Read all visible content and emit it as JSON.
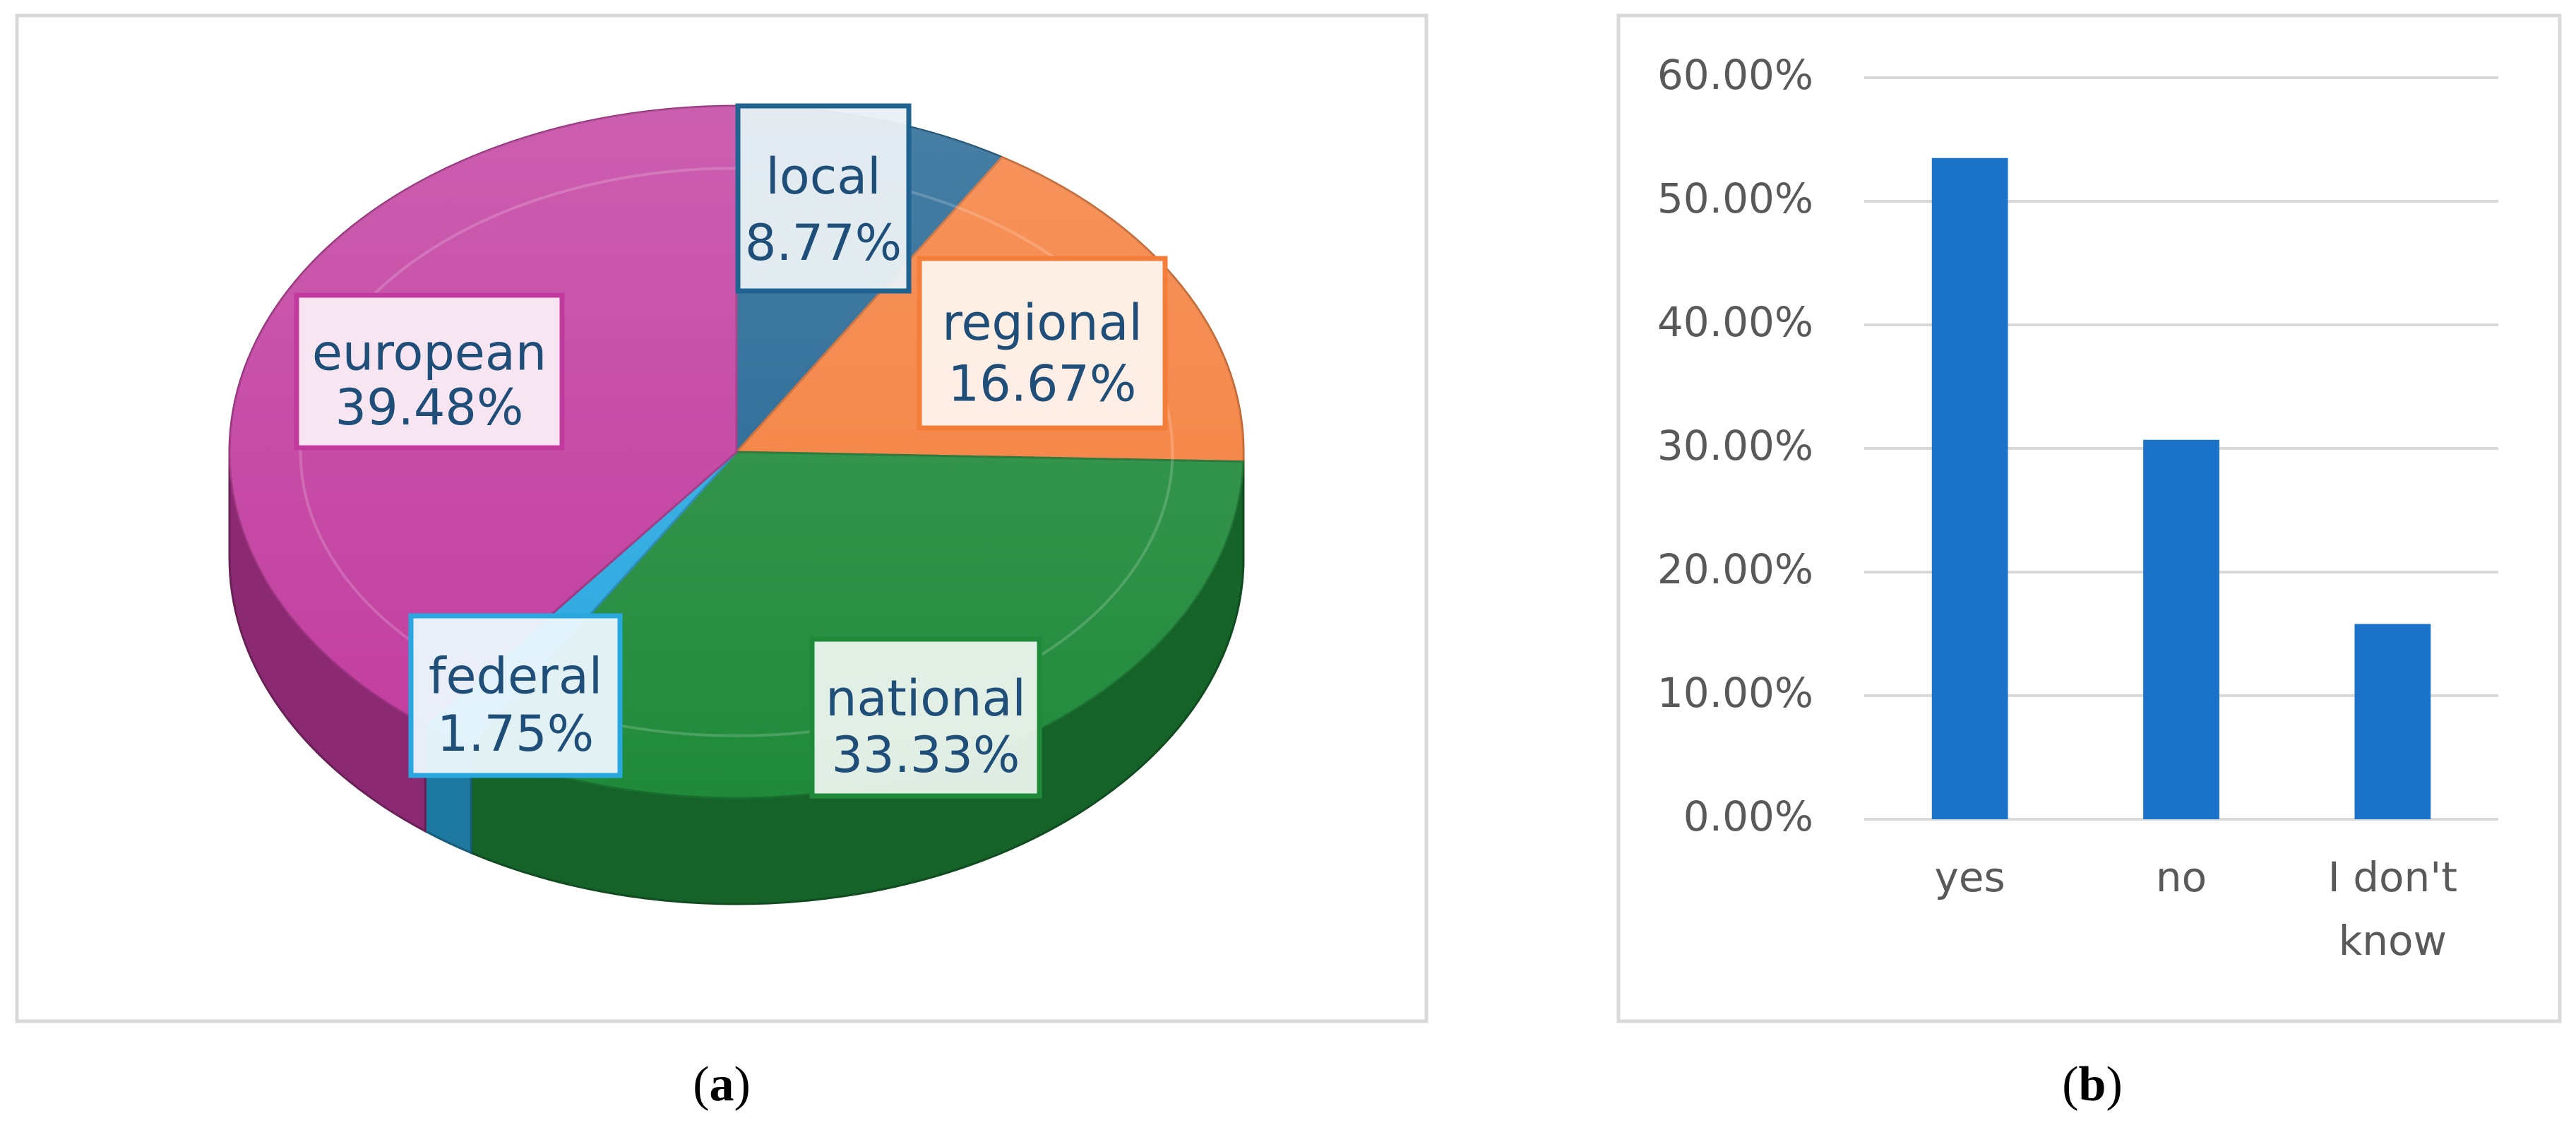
{
  "chart_data": [
    {
      "type": "pie",
      "caption": "a",
      "categories": [
        "local",
        "regional",
        "national",
        "federal",
        "european"
      ],
      "values": [
        8.77,
        16.67,
        33.33,
        1.75,
        39.48
      ],
      "labels": [
        "8.77%",
        "16.67%",
        "33.33%",
        "1.75%",
        "39.48%"
      ],
      "colors": {
        "local": "#1F6391",
        "regional": "#F47D3A",
        "national": "#1F8A3A",
        "federal": "#29A8E0",
        "european": "#C13B9E"
      },
      "title": "",
      "legend": "none"
    },
    {
      "type": "bar",
      "caption": "b",
      "categories": [
        "yes",
        "no",
        "I don't know"
      ],
      "values": [
        53.5,
        30.7,
        15.8
      ],
      "ylim": [
        0,
        60
      ],
      "yticks": [
        "0.00%",
        "10.00%",
        "20.00%",
        "30.00%",
        "40.00%",
        "50.00%",
        "60.00%"
      ],
      "title": "",
      "xlabel": "",
      "ylabel": "",
      "grid": true,
      "bar_color": "#1A73C8"
    }
  ]
}
